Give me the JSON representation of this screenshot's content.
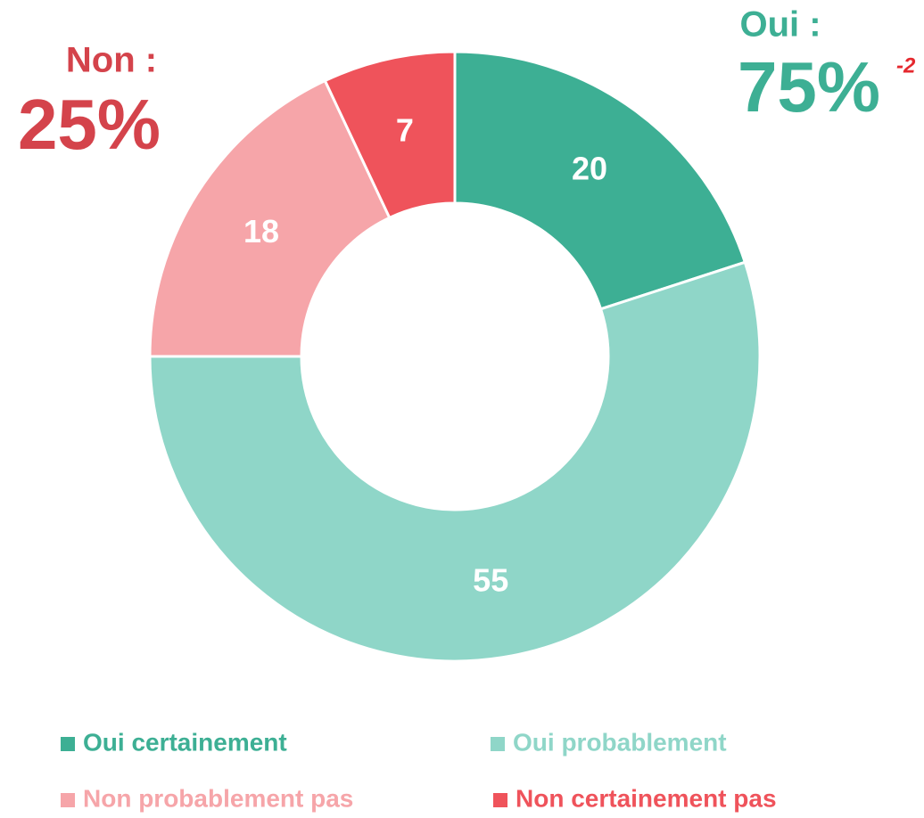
{
  "chart_data": {
    "type": "donut",
    "categories": [
      "Oui certainement",
      "Oui probablement",
      "Non probablement pas",
      "Non certainement pas"
    ],
    "values": [
      20,
      55,
      18,
      7
    ],
    "colors": [
      "#3daf94",
      "#8fd6c8",
      "#f6a5a9",
      "#ef535b"
    ],
    "annotations": [
      "Oui :",
      "75%",
      "-2",
      "Non :",
      "25%"
    ]
  }
}
